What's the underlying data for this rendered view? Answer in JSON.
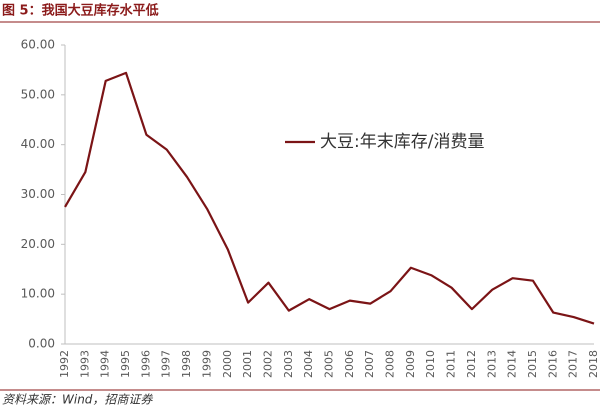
{
  "chart_data": {
    "type": "line",
    "title": "图 5：我国大豆库存水平低",
    "source": "资料来源：Wind，招商证券",
    "categories": [
      "1992",
      "1993",
      "1994",
      "1995",
      "1996",
      "1997",
      "1998",
      "1999",
      "2000",
      "2001",
      "2002",
      "2003",
      "2004",
      "2005",
      "2006",
      "2007",
      "2008",
      "2009",
      "2010",
      "2011",
      "2012",
      "2013",
      "2014",
      "2015",
      "2016",
      "2017",
      "2018"
    ],
    "series": [
      {
        "name": "大豆:年末库存/消费量",
        "color": "#7b1416",
        "values": [
          27.5,
          34.5,
          52.8,
          54.4,
          42.0,
          39.0,
          33.5,
          27.0,
          19.0,
          8.3,
          12.3,
          6.7,
          9.0,
          7.0,
          8.7,
          8.1,
          10.6,
          15.3,
          13.8,
          11.3,
          7.0,
          10.9,
          13.2,
          12.7,
          6.3,
          5.4,
          4.1
        ]
      }
    ],
    "ylim": [
      0,
      60
    ],
    "yticks": [
      {
        "value": 0,
        "label": "0.00"
      },
      {
        "value": 10,
        "label": "10.00"
      },
      {
        "value": 20,
        "label": "20.00"
      },
      {
        "value": 30,
        "label": "30.00"
      },
      {
        "value": 40,
        "label": "40.00"
      },
      {
        "value": 50,
        "label": "50.00"
      },
      {
        "value": 60,
        "label": "60.00"
      }
    ],
    "grid": false
  }
}
